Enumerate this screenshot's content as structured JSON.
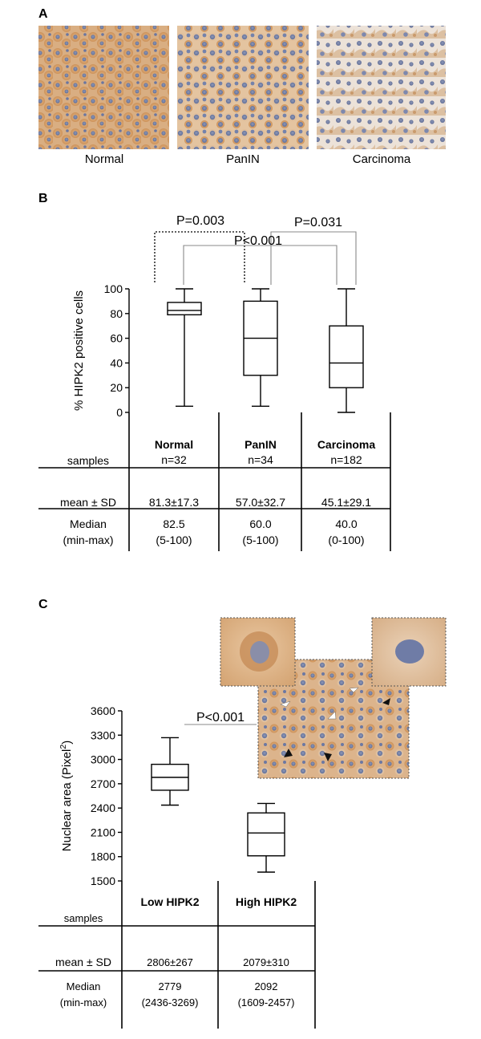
{
  "panel_a": {
    "label": "A",
    "images": [
      {
        "name": "normal",
        "caption": "Normal"
      },
      {
        "name": "panin",
        "caption": "PanIN"
      },
      {
        "name": "carcinoma",
        "caption": "Carcinoma"
      }
    ]
  },
  "panel_b": {
    "label": "B",
    "table": {
      "row_labels": {
        "samples": "samples",
        "mean": "mean ± SD",
        "median_l1": "Median",
        "median_l2": "(min-max)"
      },
      "columns": [
        {
          "name": "Normal",
          "n": "n=32",
          "mean_sd": "81.3±17.3",
          "median": "82.5",
          "range": "(5-100)"
        },
        {
          "name": "PanIN",
          "n": "n=34",
          "mean_sd": "57.0±32.7",
          "median": "60.0",
          "range": "(5-100)"
        },
        {
          "name": "Carcinoma",
          "n": "n=182",
          "mean_sd": "45.1±29.1",
          "median": "40.0",
          "range": "(0-100)"
        }
      ]
    }
  },
  "panel_c": {
    "label": "C",
    "table": {
      "row_labels": {
        "samples": "samples",
        "mean": "mean ± SD",
        "median_l1": "Median",
        "median_l2": "(min-max)"
      },
      "columns": [
        {
          "name": "Low HIPK2",
          "mean_sd": "2806±267",
          "median": "2779",
          "range": "(2436-3269)"
        },
        {
          "name": "High HIPK2",
          "mean_sd": "2079±310",
          "median": "2092",
          "range": "(1609-2457)"
        }
      ]
    }
  },
  "chart_data": [
    {
      "type": "box",
      "panel": "B",
      "title": "",
      "xlabel": "",
      "ylabel": "% HIPK2 positive cells",
      "ylim": [
        0,
        100
      ],
      "yticks": [
        0,
        20,
        40,
        60,
        80,
        100
      ],
      "categories": [
        "Normal",
        "PanIN",
        "Carcinoma"
      ],
      "boxes": [
        {
          "category": "Normal",
          "min": 5,
          "q1": 79,
          "median": 82.5,
          "q3": 89,
          "max": 100
        },
        {
          "category": "PanIN",
          "min": 5,
          "q1": 30,
          "median": 60,
          "q3": 90,
          "max": 100
        },
        {
          "category": "Carcinoma",
          "min": 0,
          "q1": 20,
          "median": 40,
          "q3": 70,
          "max": 100
        }
      ],
      "comparisons": [
        {
          "a": "Normal",
          "b": "PanIN",
          "label": "P=0.003",
          "style": "dotted"
        },
        {
          "a": "PanIN",
          "b": "Carcinoma",
          "label": "P=0.031",
          "style": "solid"
        },
        {
          "a": "Normal",
          "b": "Carcinoma",
          "label": "P<0.001",
          "style": "solid"
        }
      ]
    },
    {
      "type": "box",
      "panel": "C",
      "title": "",
      "xlabel": "",
      "ylabel": "Nuclear area (Pixel²)",
      "ylim": [
        1500,
        3600
      ],
      "yticks": [
        1500,
        1800,
        2100,
        2400,
        2700,
        3000,
        3300,
        3600
      ],
      "categories": [
        "Low HIPK2",
        "High HIPK2"
      ],
      "boxes": [
        {
          "category": "Low HIPK2",
          "min": 2436,
          "q1": 2620,
          "median": 2779,
          "q3": 2940,
          "max": 3269
        },
        {
          "category": "High HIPK2",
          "min": 1609,
          "q1": 1810,
          "median": 2092,
          "q3": 2340,
          "max": 2457
        }
      ],
      "comparisons": [
        {
          "a": "Low HIPK2",
          "b": "High HIPK2",
          "label": "P<0.001",
          "style": "solid"
        }
      ]
    }
  ]
}
